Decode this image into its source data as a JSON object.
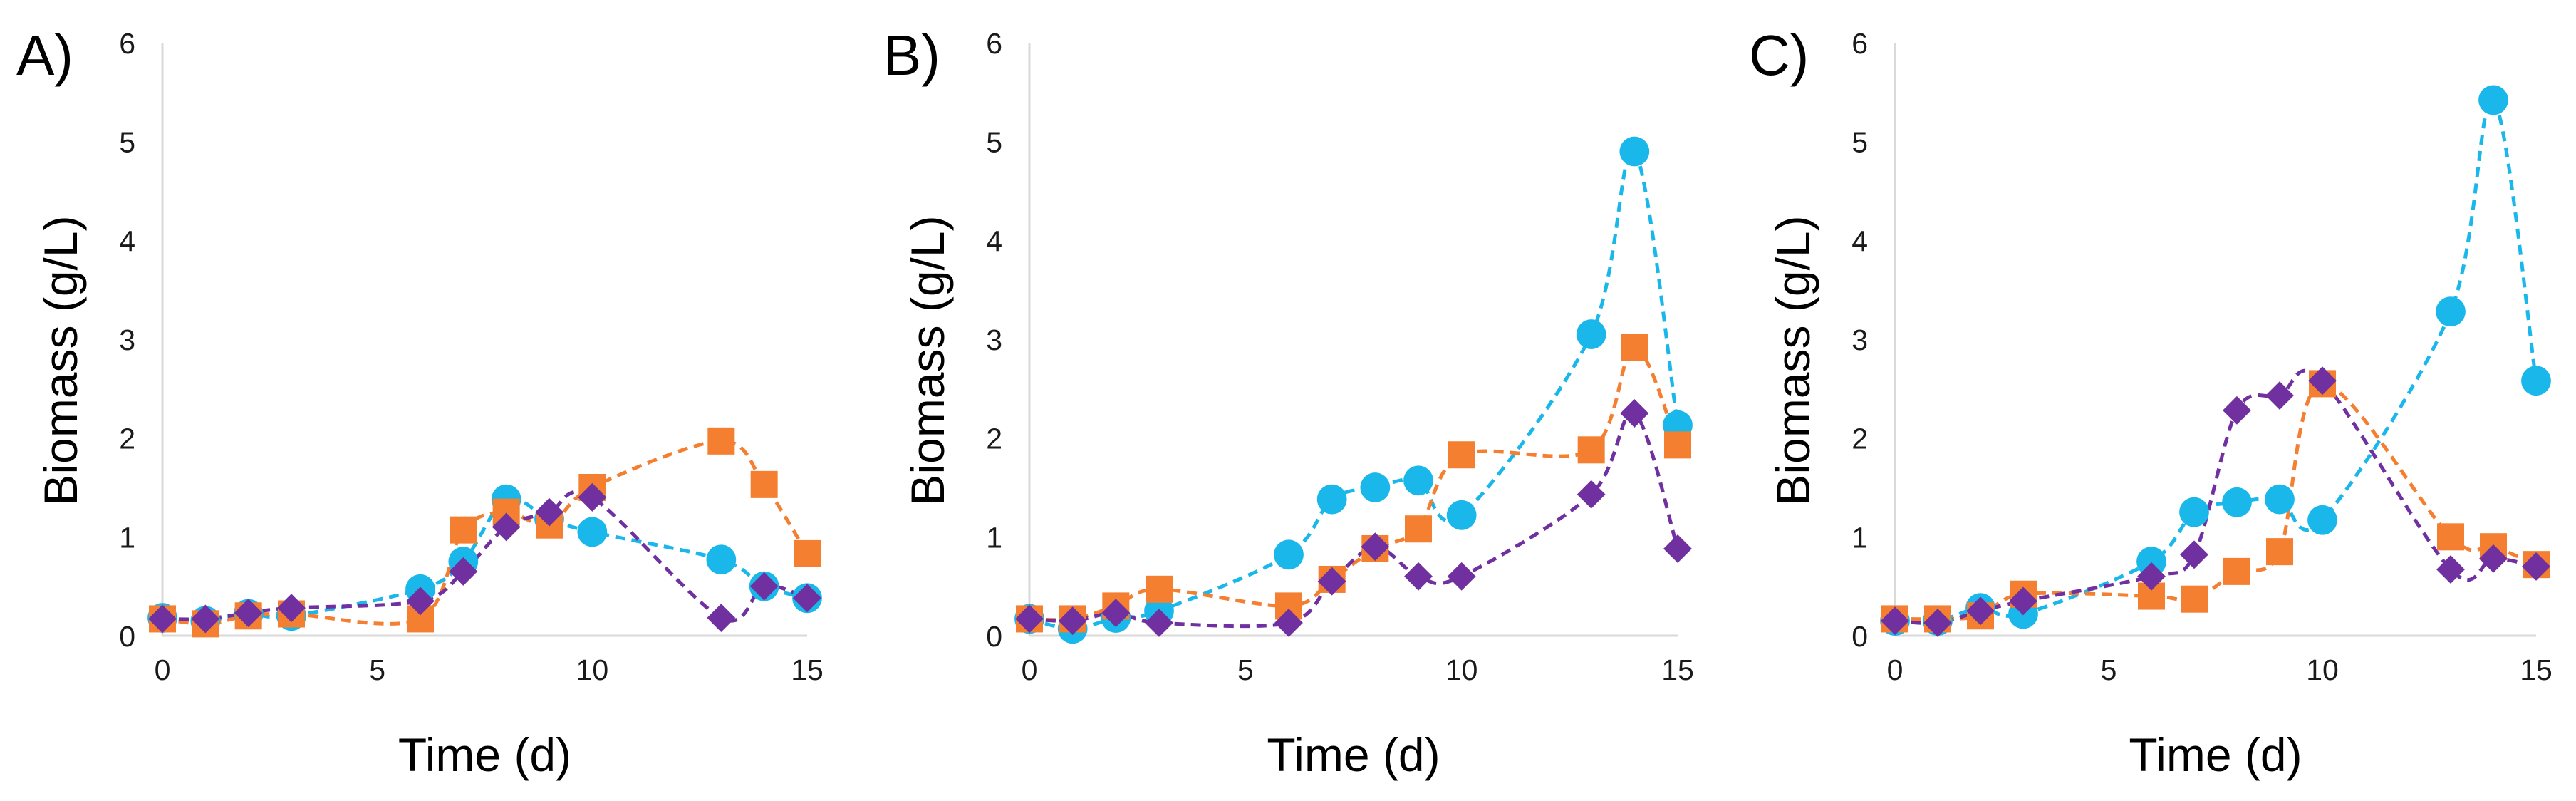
{
  "chart_data": [
    {
      "type": "line",
      "panel_label": "A)",
      "xlabel": "Time (d)",
      "ylabel": "Biomass (g/L)",
      "xlim": [
        0,
        15
      ],
      "ylim": [
        0,
        6
      ],
      "xticks": [
        0,
        5,
        10,
        15
      ],
      "yticks": [
        0,
        1,
        2,
        3,
        4,
        5,
        6
      ],
      "grid": false,
      "series": [
        {
          "color": "#1ab7ea",
          "marker": "circle",
          "x": [
            0,
            1,
            2,
            3,
            6,
            7,
            8,
            9,
            10,
            13,
            14,
            15
          ],
          "y": [
            0.18,
            0.15,
            0.22,
            0.2,
            0.47,
            0.75,
            1.38,
            1.18,
            1.05,
            0.77,
            0.5,
            0.38
          ]
        },
        {
          "color": "#f47f30",
          "marker": "square",
          "x": [
            0,
            1,
            2,
            3,
            6,
            7,
            8,
            9,
            10,
            13,
            14,
            15
          ],
          "y": [
            0.17,
            0.12,
            0.2,
            0.22,
            0.17,
            1.07,
            1.25,
            1.12,
            1.5,
            1.97,
            1.53,
            0.83
          ]
        },
        {
          "color": "#7030a0",
          "marker": "diamond",
          "x": [
            0,
            1,
            2,
            3,
            6,
            7,
            8,
            9,
            10,
            13,
            14,
            15
          ],
          "y": [
            0.17,
            0.17,
            0.23,
            0.28,
            0.35,
            0.65,
            1.1,
            1.25,
            1.4,
            0.18,
            0.5,
            0.38
          ]
        }
      ]
    },
    {
      "type": "line",
      "panel_label": "B)",
      "xlabel": "Time (d)",
      "ylabel": "Biomass (g/L)",
      "xlim": [
        0,
        15
      ],
      "ylim": [
        0,
        6
      ],
      "xticks": [
        0,
        5,
        10,
        15
      ],
      "yticks": [
        0,
        1,
        2,
        3,
        4,
        5,
        6
      ],
      "grid": false,
      "series": [
        {
          "color": "#1ab7ea",
          "marker": "circle",
          "x": [
            0,
            1,
            2,
            3,
            6,
            7,
            8,
            9,
            10,
            13,
            14,
            15
          ],
          "y": [
            0.17,
            0.07,
            0.18,
            0.25,
            0.82,
            1.38,
            1.5,
            1.57,
            1.22,
            3.05,
            4.9,
            2.13
          ]
        },
        {
          "color": "#f47f30",
          "marker": "square",
          "x": [
            0,
            1,
            2,
            3,
            6,
            7,
            8,
            9,
            10,
            13,
            14,
            15
          ],
          "y": [
            0.17,
            0.17,
            0.3,
            0.47,
            0.3,
            0.57,
            0.88,
            1.08,
            1.83,
            1.88,
            2.92,
            1.93
          ]
        },
        {
          "color": "#7030a0",
          "marker": "diamond",
          "x": [
            0,
            1,
            2,
            3,
            6,
            7,
            8,
            9,
            10,
            13,
            14,
            15
          ],
          "y": [
            0.17,
            0.15,
            0.23,
            0.13,
            0.13,
            0.55,
            0.9,
            0.6,
            0.6,
            1.43,
            2.25,
            0.88
          ]
        }
      ]
    },
    {
      "type": "line",
      "panel_label": "C)",
      "xlabel": "Time (d)",
      "ylabel": "Biomass (g/L)",
      "xlim": [
        0,
        15
      ],
      "ylim": [
        0,
        6
      ],
      "xticks": [
        0,
        5,
        10,
        15
      ],
      "yticks": [
        0,
        1,
        2,
        3,
        4,
        5,
        6
      ],
      "grid": false,
      "series": [
        {
          "color": "#1ab7ea",
          "marker": "circle",
          "x": [
            0,
            1,
            2,
            3,
            6,
            7,
            8,
            9,
            10,
            13,
            14,
            15
          ],
          "y": [
            0.15,
            0.15,
            0.28,
            0.22,
            0.75,
            1.25,
            1.35,
            1.38,
            1.17,
            3.28,
            5.42,
            2.58
          ]
        },
        {
          "color": "#f47f30",
          "marker": "square",
          "x": [
            0,
            1,
            2,
            3,
            6,
            7,
            8,
            9,
            10,
            13,
            14,
            15
          ],
          "y": [
            0.17,
            0.17,
            0.2,
            0.42,
            0.4,
            0.37,
            0.65,
            0.85,
            2.55,
            1.0,
            0.9,
            0.72
          ]
        },
        {
          "color": "#7030a0",
          "marker": "diamond",
          "x": [
            0,
            1,
            2,
            3,
            6,
            7,
            8,
            9,
            10,
            13,
            14,
            15
          ],
          "y": [
            0.15,
            0.13,
            0.25,
            0.35,
            0.6,
            0.82,
            2.28,
            2.43,
            2.58,
            0.67,
            0.78,
            0.7
          ]
        }
      ]
    }
  ]
}
